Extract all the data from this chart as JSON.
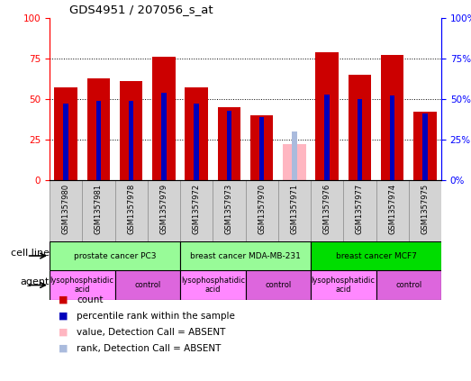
{
  "title": "GDS4951 / 207056_s_at",
  "samples": [
    "GSM1357980",
    "GSM1357981",
    "GSM1357978",
    "GSM1357979",
    "GSM1357972",
    "GSM1357973",
    "GSM1357970",
    "GSM1357971",
    "GSM1357976",
    "GSM1357977",
    "GSM1357974",
    "GSM1357975"
  ],
  "count_values": [
    57,
    63,
    61,
    76,
    57,
    45,
    40,
    null,
    79,
    65,
    77,
    42
  ],
  "percentile_values": [
    47,
    49,
    49,
    54,
    47,
    43,
    39,
    null,
    53,
    50,
    52,
    41
  ],
  "absent_count": [
    null,
    null,
    null,
    null,
    null,
    null,
    null,
    22,
    null,
    null,
    null,
    null
  ],
  "absent_rank": [
    null,
    null,
    null,
    null,
    null,
    null,
    null,
    30,
    null,
    null,
    null,
    null
  ],
  "cell_line_groups": [
    {
      "label": "prostate cancer PC3",
      "start": 0,
      "end": 3,
      "color": "#98FB98"
    },
    {
      "label": "breast cancer MDA-MB-231",
      "start": 4,
      "end": 7,
      "color": "#98FB98"
    },
    {
      "label": "breast cancer MCF7",
      "start": 8,
      "end": 11,
      "color": "#00DD00"
    }
  ],
  "agent_groups": [
    {
      "label": "lysophosphatidic\nacid",
      "start": 0,
      "end": 1,
      "color": "#FF88FF"
    },
    {
      "label": "control",
      "start": 2,
      "end": 3,
      "color": "#DD66DD"
    },
    {
      "label": "lysophosphatidic\nacid",
      "start": 4,
      "end": 5,
      "color": "#FF88FF"
    },
    {
      "label": "control",
      "start": 6,
      "end": 7,
      "color": "#DD66DD"
    },
    {
      "label": "lysophosphatidic\nacid",
      "start": 8,
      "end": 9,
      "color": "#FF88FF"
    },
    {
      "label": "control",
      "start": 10,
      "end": 11,
      "color": "#DD66DD"
    }
  ],
  "bar_color_red": "#CC0000",
  "bar_color_blue": "#0000BB",
  "bar_color_pink": "#FFB6C1",
  "bar_color_light_blue": "#AABBDD",
  "ylim": [
    0,
    100
  ],
  "bar_width": 0.7,
  "blue_bar_width": 0.15
}
